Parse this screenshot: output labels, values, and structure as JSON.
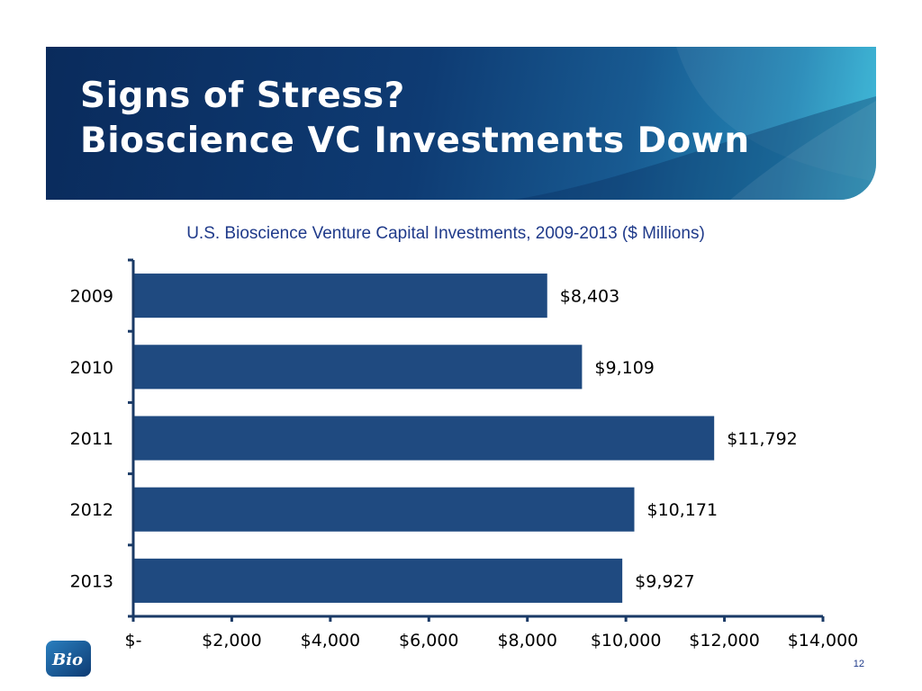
{
  "slide": {
    "title_line1": "Signs of Stress?",
    "title_line2": "Bioscience VC Investments Down",
    "logo_text": "Bio",
    "page_number": "12"
  },
  "colors": {
    "bar": "#1f4a80",
    "axis": "#1a3a66",
    "banner_dark": "#0a2b5c",
    "banner_light": "#35b9d9",
    "subtitle": "#1f3a8a"
  },
  "chart_data": {
    "type": "bar",
    "orientation": "horizontal",
    "title": "U.S. Bioscience Venture Capital Investments, 2009-2013 ($ Millions)",
    "categories": [
      "2009",
      "2010",
      "2011",
      "2012",
      "2013"
    ],
    "values": [
      8403,
      9109,
      11792,
      10171,
      9927
    ],
    "data_labels": [
      "$8,403",
      "$9,109",
      "$11,792",
      "$10,171",
      "$9,927"
    ],
    "xlim": [
      0,
      14000
    ],
    "x_ticks": [
      0,
      2000,
      4000,
      6000,
      8000,
      10000,
      12000,
      14000
    ],
    "x_tick_labels": [
      "$-",
      "$2,000",
      "$4,000",
      "$6,000",
      "$8,000",
      "$10,000",
      "$12,000",
      "$14,000"
    ],
    "xlabel": "",
    "ylabel": "",
    "grid": false,
    "legend": "none"
  }
}
